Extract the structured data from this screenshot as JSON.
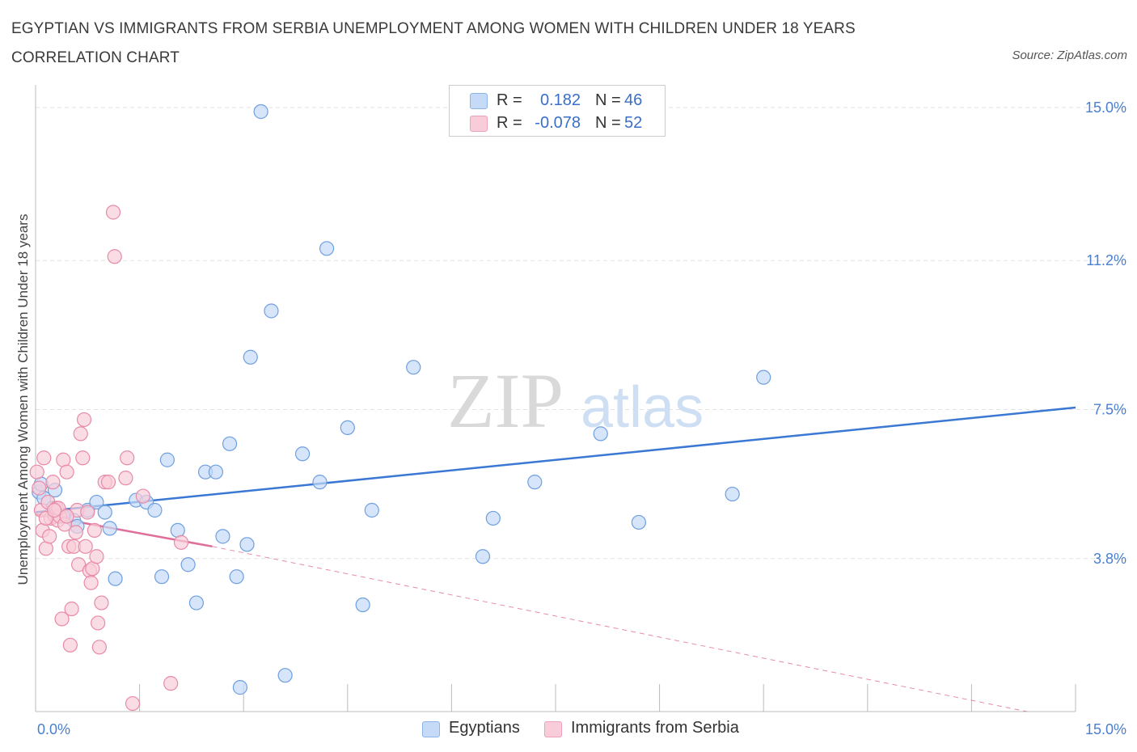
{
  "header": {
    "title": "EGYPTIAN VS IMMIGRANTS FROM SERBIA UNEMPLOYMENT AMONG WOMEN WITH CHILDREN UNDER 18 YEARS CORRELATION CHART",
    "source": "Source: ZipAtlas.com"
  },
  "watermark": {
    "zip": "ZIP",
    "atlas": "atlas"
  },
  "legend": {
    "rows": [
      {
        "r_label": "R =",
        "r_value": "0.182",
        "n_label": "N =",
        "n_value": "46",
        "color": "#9ec1ee"
      },
      {
        "r_label": "R =",
        "r_value": "-0.078",
        "n_label": "N =",
        "n_value": "52",
        "color": "#f4b3c8"
      }
    ]
  },
  "bottom_legend": {
    "items": [
      {
        "label": "Egyptians",
        "color": "#9ec1ee"
      },
      {
        "label": "Immigrants from Serbia",
        "color": "#f4b3c8"
      }
    ]
  },
  "chart_data": {
    "type": "scatter",
    "title": "EGYPTIAN VS IMMIGRANTS FROM SERBIA UNEMPLOYMENT AMONG WOMEN WITH CHILDREN UNDER 18 YEARS CORRELATION CHART",
    "xlabel": "",
    "ylabel": "Unemployment Among Women with Children Under 18 years",
    "xlim": [
      0,
      15
    ],
    "ylim": [
      0,
      15
    ],
    "x_tick_labels": [
      "0.0%",
      "15.0%"
    ],
    "y_ticks": [
      3.8,
      7.5,
      11.2,
      15.0
    ],
    "y_tick_labels": [
      "3.8%",
      "7.5%",
      "11.2%",
      "15.0%"
    ],
    "grid": true,
    "series": [
      {
        "name": "Egyptians",
        "color": "#6e9fe0",
        "fill": "#c5daf6",
        "trend": {
          "x": [
            0.0,
            15.0
          ],
          "y": [
            4.95,
            7.55
          ],
          "style": "solid",
          "color": "#3a78d4"
        },
        "points": [
          [
            0.05,
            5.45
          ],
          [
            0.12,
            5.3
          ],
          [
            0.28,
            5.5
          ],
          [
            0.55,
            4.75
          ],
          [
            0.6,
            4.6
          ],
          [
            0.75,
            5.0
          ],
          [
            0.88,
            5.2
          ],
          [
            1.0,
            4.95
          ],
          [
            1.07,
            4.55
          ],
          [
            1.15,
            3.3
          ],
          [
            1.45,
            5.25
          ],
          [
            1.6,
            5.2
          ],
          [
            1.72,
            5.0
          ],
          [
            1.82,
            3.35
          ],
          [
            1.9,
            6.25
          ],
          [
            2.05,
            4.5
          ],
          [
            2.2,
            3.65
          ],
          [
            2.32,
            2.7
          ],
          [
            2.45,
            5.95
          ],
          [
            2.6,
            5.95
          ],
          [
            2.7,
            4.35
          ],
          [
            2.8,
            6.65
          ],
          [
            2.9,
            3.35
          ],
          [
            2.95,
            0.6
          ],
          [
            3.05,
            4.15
          ],
          [
            3.1,
            8.8
          ],
          [
            3.25,
            14.9
          ],
          [
            3.4,
            9.95
          ],
          [
            3.6,
            0.9
          ],
          [
            3.85,
            6.4
          ],
          [
            4.1,
            5.7
          ],
          [
            4.2,
            11.5
          ],
          [
            4.5,
            7.05
          ],
          [
            4.72,
            2.65
          ],
          [
            4.85,
            5.0
          ],
          [
            5.45,
            8.55
          ],
          [
            6.45,
            3.85
          ],
          [
            6.6,
            4.8
          ],
          [
            7.2,
            5.7
          ],
          [
            8.15,
            6.9
          ],
          [
            8.7,
            4.7
          ],
          [
            10.05,
            5.4
          ],
          [
            10.5,
            8.3
          ],
          [
            0.4,
            4.85
          ],
          [
            0.25,
            5.05
          ],
          [
            0.08,
            5.65
          ]
        ]
      },
      {
        "name": "Immigrants from Serbia",
        "color": "#e88aa8",
        "fill": "#f8cdd9",
        "trend": {
          "x": [
            0.0,
            2.55
          ],
          "y": [
            4.9,
            4.1
          ],
          "style": "solid",
          "color": "#e06e9a",
          "extension": {
            "x": [
              2.55,
              14.3
            ],
            "y": [
              4.1,
              0.0
            ],
            "style": "dashed"
          }
        },
        "points": [
          [
            0.02,
            5.95
          ],
          [
            0.05,
            5.55
          ],
          [
            0.08,
            5.0
          ],
          [
            0.1,
            4.5
          ],
          [
            0.12,
            6.3
          ],
          [
            0.15,
            4.05
          ],
          [
            0.18,
            5.2
          ],
          [
            0.2,
            4.35
          ],
          [
            0.22,
            4.8
          ],
          [
            0.25,
            5.7
          ],
          [
            0.28,
            4.85
          ],
          [
            0.3,
            5.05
          ],
          [
            0.32,
            4.75
          ],
          [
            0.35,
            4.85
          ],
          [
            0.38,
            2.3
          ],
          [
            0.4,
            6.25
          ],
          [
            0.42,
            4.65
          ],
          [
            0.45,
            5.95
          ],
          [
            0.48,
            4.1
          ],
          [
            0.5,
            1.65
          ],
          [
            0.52,
            2.55
          ],
          [
            0.55,
            4.1
          ],
          [
            0.6,
            5.0
          ],
          [
            0.62,
            3.65
          ],
          [
            0.65,
            6.9
          ],
          [
            0.68,
            6.3
          ],
          [
            0.7,
            7.25
          ],
          [
            0.72,
            4.1
          ],
          [
            0.75,
            4.95
          ],
          [
            0.78,
            3.5
          ],
          [
            0.8,
            3.2
          ],
          [
            0.82,
            3.55
          ],
          [
            0.85,
            4.5
          ],
          [
            0.88,
            3.85
          ],
          [
            0.9,
            2.2
          ],
          [
            0.92,
            1.6
          ],
          [
            0.95,
            2.7
          ],
          [
            1.0,
            5.7
          ],
          [
            1.05,
            5.7
          ],
          [
            1.12,
            12.4
          ],
          [
            1.14,
            11.3
          ],
          [
            1.3,
            5.8
          ],
          [
            1.32,
            6.3
          ],
          [
            1.4,
            0.2
          ],
          [
            1.55,
            5.35
          ],
          [
            1.95,
            0.7
          ],
          [
            2.1,
            4.2
          ],
          [
            0.15,
            4.8
          ],
          [
            0.33,
            5.05
          ],
          [
            0.58,
            4.45
          ],
          [
            0.45,
            4.85
          ],
          [
            0.27,
            5.0
          ]
        ]
      }
    ]
  }
}
